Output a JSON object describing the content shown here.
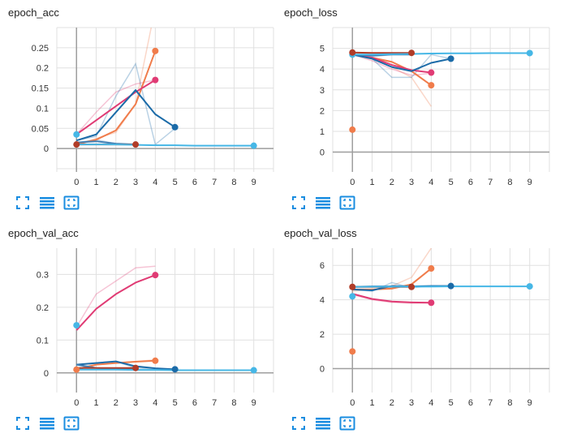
{
  "colors": {
    "orange": "#f07c4b",
    "dark_blue": "#1b6ba8",
    "light_blue": "#46b7e6",
    "magenta": "#e03b74",
    "brown": "#b03c28",
    "steel": "#3f7fb4",
    "accent": "#1a8de0"
  },
  "toolbar_icons": [
    "fullscreen-icon",
    "data-table-icon",
    "fit-domain-icon"
  ],
  "chart_data": [
    {
      "type": "line",
      "title": "epoch_acc",
      "x_ticks": [
        0,
        1,
        2,
        3,
        4,
        5,
        6,
        7,
        8,
        9
      ],
      "y_ticks": [
        0,
        0.05,
        0.1,
        0.15,
        0.2,
        0.25
      ],
      "y_tick_labels": [
        "0",
        "0.05",
        "0.1",
        "0.15",
        "0.2",
        "0.25"
      ],
      "xlim": [
        -1,
        10
      ],
      "ylim": [
        -0.05,
        0.3
      ],
      "grid": true,
      "series": [
        {
          "color": "orange",
          "raw": [
            0.01,
            0.025,
            0.04,
            0.11,
            0.35
          ],
          "values": [
            0.01,
            0.022,
            0.045,
            0.11,
            0.242
          ]
        },
        {
          "color": "magenta",
          "raw": [
            0.035,
            0.09,
            0.14,
            0.16,
            0.17
          ],
          "values": [
            0.035,
            0.07,
            0.105,
            0.14,
            0.17
          ]
        },
        {
          "color": "dark_blue",
          "raw": [
            0.02,
            0.03,
            0.13,
            0.21,
            0.01,
            0.05
          ],
          "values": [
            0.02,
            0.035,
            0.09,
            0.145,
            0.085,
            0.053
          ]
        },
        {
          "color": "steel",
          "raw": [
            0.015,
            0.022,
            0.012,
            0.01
          ],
          "values": [
            0.015,
            0.018,
            0.012,
            0.01
          ]
        },
        {
          "color": "brown",
          "raw": [
            0.01,
            0.01,
            0.01,
            0.01
          ],
          "values": [
            0.01,
            0.01,
            0.01,
            0.01
          ]
        },
        {
          "color": "light_blue",
          "raw": [
            0.01,
            0.01,
            0.01,
            0.009,
            0.008,
            0.008,
            0.007,
            0.007,
            0.007,
            0.007
          ],
          "values": [
            0.01,
            0.01,
            0.01,
            0.009,
            0.008,
            0.008,
            0.007,
            0.007,
            0.007,
            0.007
          ]
        }
      ],
      "markers": [
        {
          "color": "orange",
          "x": 4,
          "y": 0.242
        },
        {
          "color": "magenta",
          "x": 4,
          "y": 0.17
        },
        {
          "color": "dark_blue",
          "x": 5,
          "y": 0.053
        },
        {
          "color": "light_blue",
          "x": 0,
          "y": 0.035
        },
        {
          "color": "brown",
          "x": 0,
          "y": 0.01
        },
        {
          "color": "brown",
          "x": 3,
          "y": 0.01
        },
        {
          "color": "light_blue",
          "x": 9,
          "y": 0.007
        }
      ]
    },
    {
      "type": "line",
      "title": "epoch_loss",
      "x_ticks": [
        0,
        1,
        2,
        3,
        4,
        5,
        6,
        7,
        8,
        9
      ],
      "y_ticks": [
        0,
        1,
        2,
        3,
        4,
        5
      ],
      "y_tick_labels": [
        "0",
        "1",
        "2",
        "3",
        "4",
        "5"
      ],
      "xlim": [
        -1,
        10
      ],
      "ylim": [
        -0.8,
        6
      ],
      "grid": true,
      "series": [
        {
          "color": "orange",
          "raw": [
            4.7,
            4.5,
            4.1,
            3.6,
            2.2
          ],
          "values": [
            4.7,
            4.55,
            4.35,
            3.9,
            3.22
          ]
        },
        {
          "color": "magenta",
          "raw": [
            4.7,
            4.4,
            4.0,
            3.7,
            3.8
          ],
          "values": [
            4.7,
            4.55,
            4.2,
            3.95,
            3.83
          ]
        },
        {
          "color": "dark_blue",
          "raw": [
            4.7,
            4.5,
            3.6,
            3.6,
            4.7,
            4.5
          ],
          "values": [
            4.7,
            4.5,
            4.1,
            3.9,
            4.3,
            4.5
          ]
        },
        {
          "color": "steel",
          "raw": [
            4.7,
            4.6,
            4.7,
            4.7
          ],
          "values": [
            4.7,
            4.65,
            4.7,
            4.7
          ]
        },
        {
          "color": "brown",
          "raw": [
            4.8,
            4.78,
            4.78,
            4.78
          ],
          "values": [
            4.8,
            4.78,
            4.78,
            4.78
          ]
        },
        {
          "color": "light_blue",
          "raw": [
            4.7,
            4.7,
            4.72,
            4.73,
            4.75,
            4.76,
            4.76,
            4.77,
            4.77,
            4.77
          ],
          "values": [
            4.7,
            4.7,
            4.72,
            4.73,
            4.75,
            4.76,
            4.76,
            4.77,
            4.77,
            4.77
          ]
        }
      ],
      "markers": [
        {
          "color": "orange",
          "x": 0,
          "y": 1.08
        },
        {
          "color": "orange",
          "x": 4,
          "y": 3.22
        },
        {
          "color": "magenta",
          "x": 4,
          "y": 3.83
        },
        {
          "color": "dark_blue",
          "x": 5,
          "y": 4.5
        },
        {
          "color": "light_blue",
          "x": 0,
          "y": 4.7
        },
        {
          "color": "brown",
          "x": 0,
          "y": 4.8
        },
        {
          "color": "brown",
          "x": 3,
          "y": 4.78
        },
        {
          "color": "light_blue",
          "x": 9,
          "y": 4.77
        }
      ]
    },
    {
      "type": "line",
      "title": "epoch_val_acc",
      "x_ticks": [
        0,
        1,
        2,
        3,
        4,
        5,
        6,
        7,
        8,
        9
      ],
      "y_ticks": [
        0,
        0.1,
        0.2,
        0.3
      ],
      "y_tick_labels": [
        "0",
        "0.1",
        "0.2",
        "0.3"
      ],
      "xlim": [
        -1,
        10
      ],
      "ylim": [
        -0.05,
        0.38
      ],
      "grid": true,
      "series": [
        {
          "color": "magenta",
          "raw": [
            0.14,
            0.24,
            0.28,
            0.32,
            0.325
          ],
          "values": [
            0.13,
            0.195,
            0.24,
            0.275,
            0.298
          ]
        },
        {
          "color": "orange",
          "raw": [
            0.01,
            0.03,
            0.03,
            0.035,
            0.04
          ],
          "values": [
            0.01,
            0.025,
            0.03,
            0.034,
            0.037
          ]
        },
        {
          "color": "dark_blue",
          "raw": [
            0.025,
            0.03,
            0.035,
            0.015,
            0.012,
            0.01
          ],
          "values": [
            0.025,
            0.03,
            0.035,
            0.02,
            0.014,
            0.011
          ]
        },
        {
          "color": "steel",
          "raw": [
            0.025,
            0.01,
            0.012,
            0.012
          ],
          "values": [
            0.025,
            0.015,
            0.012,
            0.012
          ]
        },
        {
          "color": "brown",
          "raw": [
            0.015,
            0.015,
            0.015,
            0.015
          ],
          "values": [
            0.015,
            0.015,
            0.015,
            0.015
          ]
        },
        {
          "color": "light_blue",
          "raw": [
            0.01,
            0.01,
            0.01,
            0.009,
            0.009,
            0.008,
            0.008,
            0.008,
            0.008,
            0.008
          ],
          "values": [
            0.01,
            0.01,
            0.01,
            0.009,
            0.009,
            0.008,
            0.008,
            0.008,
            0.008,
            0.008
          ]
        }
      ],
      "markers": [
        {
          "color": "light_blue",
          "x": 0,
          "y": 0.145
        },
        {
          "color": "magenta",
          "x": 4,
          "y": 0.298
        },
        {
          "color": "orange",
          "x": 4,
          "y": 0.037
        },
        {
          "color": "dark_blue",
          "x": 5,
          "y": 0.011
        },
        {
          "color": "brown",
          "x": 3,
          "y": 0.015
        },
        {
          "color": "orange",
          "x": 0,
          "y": 0.01
        },
        {
          "color": "light_blue",
          "x": 9,
          "y": 0.008
        }
      ]
    },
    {
      "type": "line",
      "title": "epoch_val_loss",
      "x_ticks": [
        0,
        1,
        2,
        3,
        4,
        5,
        6,
        7,
        8,
        9
      ],
      "y_ticks": [
        0,
        2,
        4,
        6
      ],
      "y_tick_labels": [
        "0",
        "2",
        "4",
        "6"
      ],
      "xlim": [
        -1,
        10
      ],
      "ylim": [
        -1.2,
        7
      ],
      "grid": true,
      "series": [
        {
          "color": "orange",
          "raw": [
            4.5,
            4.6,
            4.8,
            5.3,
            7.0
          ],
          "values": [
            4.6,
            4.6,
            4.65,
            4.9,
            5.82
          ]
        },
        {
          "color": "magenta",
          "raw": [
            4.3,
            4.0,
            3.85,
            3.8,
            3.82
          ],
          "values": [
            4.35,
            4.05,
            3.9,
            3.85,
            3.83
          ]
        },
        {
          "color": "dark_blue",
          "raw": [
            4.6,
            4.5,
            5.0,
            4.7,
            4.8,
            4.8
          ],
          "values": [
            4.6,
            4.55,
            4.8,
            4.78,
            4.8,
            4.8
          ]
        },
        {
          "color": "steel",
          "raw": [
            4.75,
            4.78,
            4.78,
            4.78
          ],
          "values": [
            4.75,
            4.78,
            4.78,
            4.78
          ]
        },
        {
          "color": "brown",
          "raw": [
            4.75,
            4.75,
            4.75,
            4.75
          ],
          "values": [
            4.75,
            4.75,
            4.75,
            4.75
          ]
        },
        {
          "color": "light_blue",
          "raw": [
            4.75,
            4.76,
            4.76,
            4.77,
            4.77,
            4.78,
            4.78,
            4.78,
            4.78,
            4.78
          ],
          "values": [
            4.75,
            4.76,
            4.76,
            4.77,
            4.77,
            4.78,
            4.78,
            4.78,
            4.78,
            4.78
          ]
        }
      ],
      "markers": [
        {
          "color": "orange",
          "x": 0,
          "y": 1.0
        },
        {
          "color": "light_blue",
          "x": 0,
          "y": 4.2
        },
        {
          "color": "orange",
          "x": 4,
          "y": 5.82
        },
        {
          "color": "magenta",
          "x": 4,
          "y": 3.83
        },
        {
          "color": "brown",
          "x": 0,
          "y": 4.75
        },
        {
          "color": "brown",
          "x": 3,
          "y": 4.75
        },
        {
          "color": "dark_blue",
          "x": 5,
          "y": 4.8
        },
        {
          "color": "light_blue",
          "x": 9,
          "y": 4.78
        }
      ]
    }
  ]
}
